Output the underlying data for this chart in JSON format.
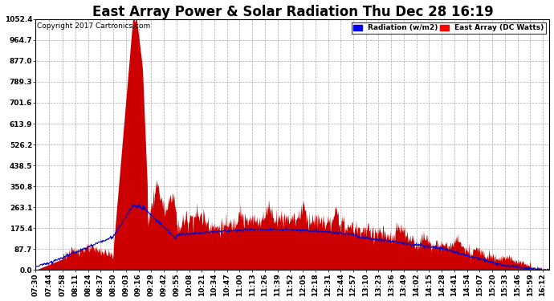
{
  "title": "East Array Power & Solar Radiation Thu Dec 28 16:19",
  "copyright": "Copyright 2017 Cartronics.com",
  "legend_radiation": "Radiation (w/m2)",
  "legend_east_array": "East Array (DC Watts)",
  "y_max": 1052.4,
  "y_ticks": [
    0.0,
    87.7,
    175.4,
    263.1,
    350.8,
    438.5,
    526.2,
    613.9,
    701.6,
    789.3,
    877.0,
    964.7,
    1052.4
  ],
  "background_color": "#ffffff",
  "plot_bg_color": "#ffffff",
  "grid_color": "#aaaaaa",
  "fill_color": "#cc0000",
  "line_color": "#0000cc",
  "x_tick_labels": [
    "07:30",
    "07:44",
    "07:58",
    "08:11",
    "08:24",
    "08:37",
    "08:50",
    "09:03",
    "09:16",
    "09:29",
    "09:42",
    "09:55",
    "10:08",
    "10:21",
    "10:34",
    "10:47",
    "11:00",
    "11:13",
    "11:26",
    "11:39",
    "11:52",
    "12:05",
    "12:18",
    "12:31",
    "12:44",
    "12:57",
    "13:10",
    "13:23",
    "13:36",
    "13:49",
    "14:02",
    "14:15",
    "14:28",
    "14:41",
    "14:54",
    "15:07",
    "15:20",
    "15:33",
    "15:46",
    "15:59",
    "16:12"
  ],
  "title_fontsize": 12,
  "tick_fontsize": 6.5,
  "copyright_fontsize": 6.5
}
